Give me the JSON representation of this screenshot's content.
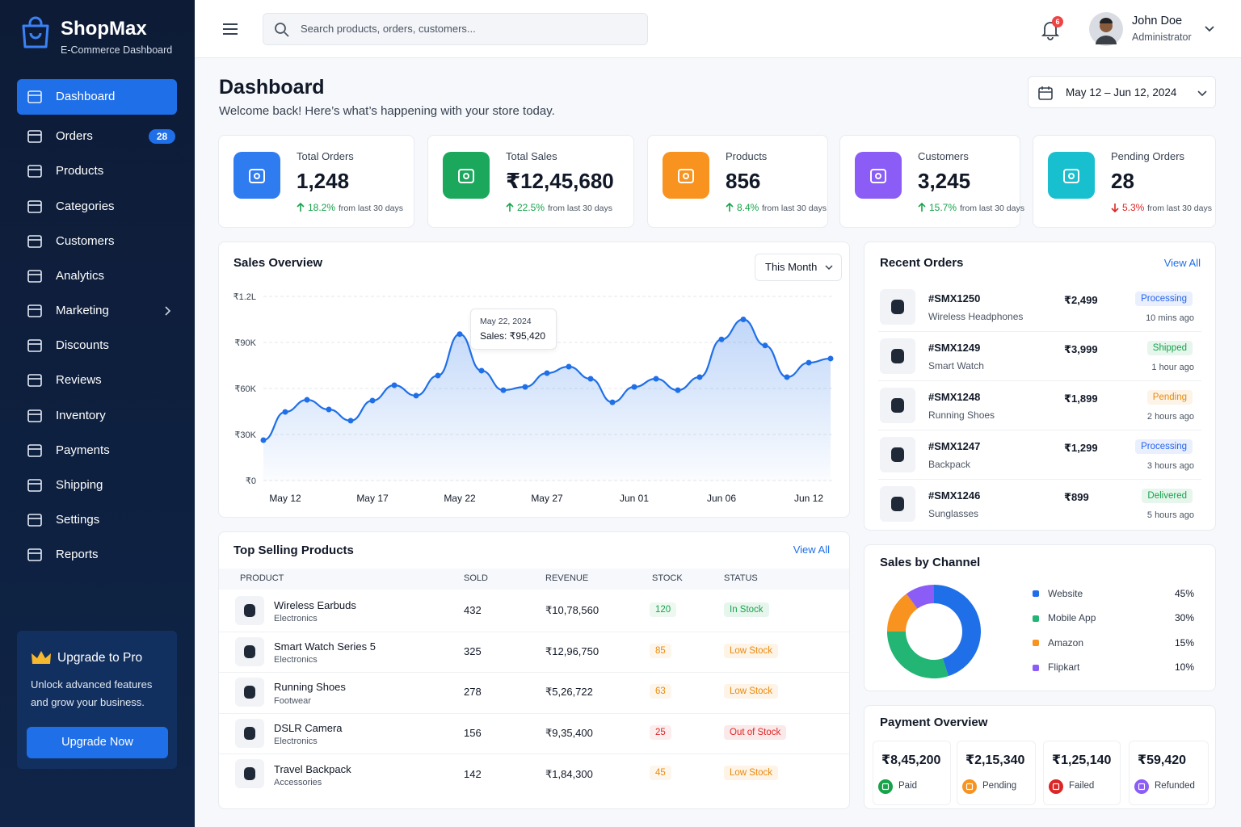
{
  "brand": {
    "name": "ShopMax",
    "subtitle": "E-Commerce Dashboard"
  },
  "nav": [
    {
      "label": "Dashboard",
      "active": true
    },
    {
      "label": "Orders",
      "badge": 28
    },
    {
      "label": "Products"
    },
    {
      "label": "Categories"
    },
    {
      "label": "Customers"
    },
    {
      "label": "Analytics"
    },
    {
      "label": "Marketing",
      "submenu": true
    },
    {
      "label": "Discounts"
    },
    {
      "label": "Reviews"
    },
    {
      "label": "Inventory"
    },
    {
      "label": "Payments"
    },
    {
      "label": "Shipping"
    },
    {
      "label": "Settings"
    },
    {
      "label": "Reports"
    }
  ],
  "upgrade": {
    "title": "Upgrade to Pro",
    "text": "Unlock advanced features and grow your business.",
    "button": "Upgrade Now"
  },
  "search_placeholder": "Search products, orders, customers...",
  "notifications": 6,
  "user": {
    "name": "John Doe",
    "role": "Administrator"
  },
  "page": {
    "title": "Dashboard",
    "subtitle": "Welcome back! Here’s what’s happening with your store today.",
    "date_range": "May 12 – Jun 12, 2024"
  },
  "stats": [
    {
      "label": "Total Orders",
      "value": "1,248",
      "change": "18.2%",
      "note": "from last 30 days",
      "trend": "up",
      "color": "#2f7cf0"
    },
    {
      "label": "Total Sales",
      "value": "₹12,45,680",
      "change": "22.5%",
      "note": "from last 30 days",
      "trend": "up",
      "color": "#1ba85c"
    },
    {
      "label": "Products",
      "value": "856",
      "change": "8.4%",
      "note": "from last 30 days",
      "trend": "up",
      "color": "#f7931e"
    },
    {
      "label": "Customers",
      "value": "3,245",
      "change": "15.7%",
      "note": "from last 30 days",
      "trend": "up",
      "color": "#8b5cf6"
    },
    {
      "label": "Pending Orders",
      "value": "28",
      "change": "5.3%",
      "note": "from last 30 days",
      "trend": "down",
      "color": "#17bfcf"
    }
  ],
  "sales_overview": {
    "title": "Sales Overview",
    "period": "This Month",
    "tooltip": {
      "date": "May 22, 2024",
      "text": "Sales: ₹95,420"
    },
    "chart": {
      "type": "line",
      "color": "#1f6fe8",
      "grid": true,
      "categories": [
        null,
        "May 12",
        null,
        null,
        null,
        "May 17",
        null,
        null,
        null,
        "May 22",
        null,
        null,
        null,
        "May 27",
        null,
        null,
        null,
        "Jun 01",
        null,
        null,
        null,
        "Jun 06",
        null,
        null,
        null,
        "Jun 12",
        null
      ],
      "values": [
        26300,
        44700,
        52600,
        46300,
        39000,
        52100,
        62100,
        55300,
        68400,
        95420,
        71600,
        58900,
        61000,
        70000,
        74200,
        66300,
        51000,
        61000,
        66300,
        58900,
        67400,
        92000,
        105000,
        88000,
        67400,
        76800,
        79500
      ],
      "ylim": [
        0,
        120000
      ],
      "yticks": [
        {
          "value": 0,
          "label": "₹0"
        },
        {
          "value": 30000,
          "label": "₹30K"
        },
        {
          "value": 60000,
          "label": "₹60K"
        },
        {
          "value": 90000,
          "label": "₹90K"
        },
        {
          "value": 120000,
          "label": "₹1.2L"
        }
      ]
    }
  },
  "recent_orders": {
    "title": "Recent Orders",
    "view_all": "View All",
    "orders": [
      {
        "id": "#SMX1250",
        "product": "Wireless Headphones",
        "price": "₹2,499",
        "status": "Processing",
        "status_color": "#2563eb",
        "time": "10 mins ago"
      },
      {
        "id": "#SMX1249",
        "product": "Smart Watch",
        "price": "₹3,999",
        "status": "Shipped",
        "status_color": "#16a34a",
        "time": "1 hour ago"
      },
      {
        "id": "#SMX1248",
        "product": "Running Shoes",
        "price": "₹1,899",
        "status": "Pending",
        "status_color": "#ea8a0c",
        "time": "2 hours ago"
      },
      {
        "id": "#SMX1247",
        "product": "Backpack",
        "price": "₹1,299",
        "status": "Processing",
        "status_color": "#2563eb",
        "time": "3 hours ago"
      },
      {
        "id": "#SMX1246",
        "product": "Sunglasses",
        "price": "₹899",
        "status": "Delivered",
        "status_color": "#16a34a",
        "time": "5 hours ago"
      }
    ]
  },
  "top_products": {
    "title": "Top Selling Products",
    "view_all": "View All",
    "columns": [
      "PRODUCT",
      "SOLD",
      "REVENUE",
      "STOCK",
      "STATUS"
    ],
    "rows": [
      {
        "name": "Wireless Earbuds",
        "category": "Electronics",
        "sold": 432,
        "revenue": "₹10,78,560",
        "stock": 120,
        "status": "In Stock",
        "status_color": "#16a34a"
      },
      {
        "name": "Smart Watch Series 5",
        "category": "Electronics",
        "sold": 325,
        "revenue": "₹12,96,750",
        "stock": 85,
        "status": "Low Stock",
        "status_color": "#ea8a0c"
      },
      {
        "name": "Running Shoes",
        "category": "Footwear",
        "sold": 278,
        "revenue": "₹5,26,722",
        "stock": 63,
        "status": "Low Stock",
        "status_color": "#ea8a0c"
      },
      {
        "name": "DSLR Camera",
        "category": "Electronics",
        "sold": 156,
        "revenue": "₹9,35,400",
        "stock": 25,
        "status": "Out of Stock",
        "status_color": "#dc2626"
      },
      {
        "name": "Travel Backpack",
        "category": "Accessories",
        "sold": 142,
        "revenue": "₹1,84,300",
        "stock": 45,
        "status": "Low Stock",
        "status_color": "#ea8a0c"
      }
    ]
  },
  "sales_by_channel": {
    "title": "Sales by Channel",
    "chart": {
      "type": "donut",
      "categories": [
        "Website",
        "Mobile App",
        "Amazon",
        "Flipkart"
      ],
      "values": [
        45,
        30,
        15,
        10
      ],
      "value_labels": [
        "45%",
        "30%",
        "15%",
        "10%"
      ],
      "colors": [
        "#1f6fe8",
        "#22b573",
        "#f7931e",
        "#8b5cf6"
      ]
    }
  },
  "payment_overview": {
    "title": "Payment Overview",
    "items": [
      {
        "amount": "₹8,45,200",
        "label": "Paid",
        "color": "#16a34a"
      },
      {
        "amount": "₹2,15,340",
        "label": "Pending",
        "color": "#f7931e"
      },
      {
        "amount": "₹1,25,140",
        "label": "Failed",
        "color": "#dc2626"
      },
      {
        "amount": "₹59,420",
        "label": "Refunded",
        "color": "#8b5cf6"
      }
    ]
  }
}
